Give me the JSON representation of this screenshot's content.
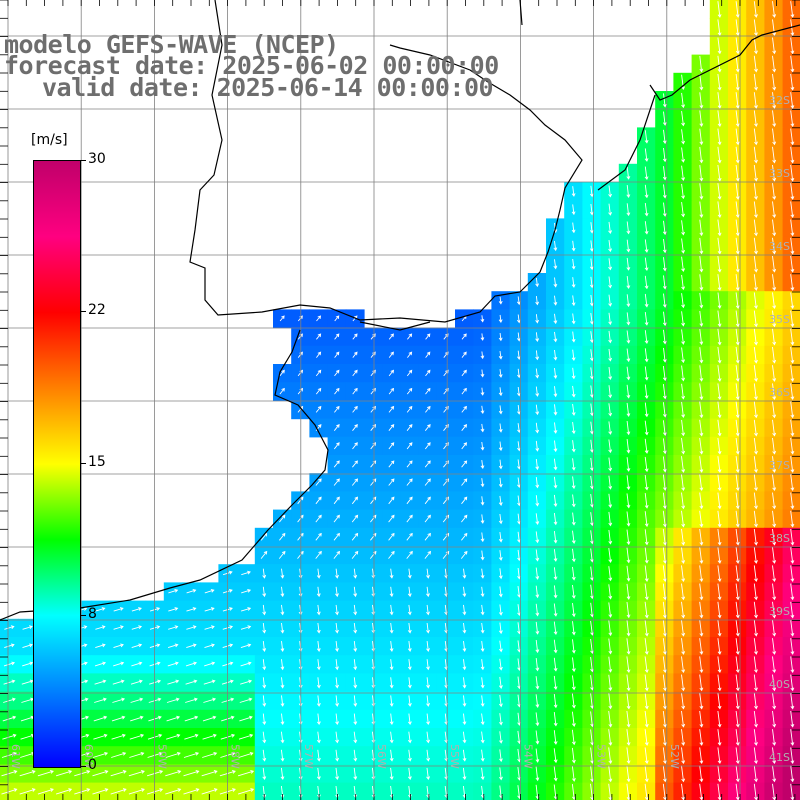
{
  "title": {
    "line1": "modelo GEFS-WAVE (NCEP)",
    "line2": "forecast date: 2025-06-02 00:00:00",
    "line3": "valid date: 2025-06-14 00:00:00"
  },
  "colorbar": {
    "unit": "[m/s]",
    "ticks": [
      "30",
      "22",
      "15",
      "8",
      "0"
    ],
    "tick_values": [
      30,
      22,
      15,
      8,
      0
    ],
    "colors": [
      "#0000ff",
      "#0080ff",
      "#00ffff",
      "#00ff00",
      "#ffff00",
      "#ff8000",
      "#ff0000",
      "#ff0080",
      "#c0006a"
    ]
  },
  "axes": {
    "lat_labels": [
      "32S",
      "33S",
      "34S",
      "35S",
      "36S",
      "37S",
      "38S",
      "39S",
      "40S",
      "41S"
    ],
    "lon_labels": [
      "61W",
      "60W",
      "59W",
      "58W",
      "57W",
      "56W",
      "55W",
      "54W",
      "53W",
      "52W"
    ]
  },
  "colors": {
    "land": "#ffffff",
    "grid": "#808080",
    "coast": "#000000",
    "arrows": "#ffffff",
    "title": "#6e6e6e"
  }
}
